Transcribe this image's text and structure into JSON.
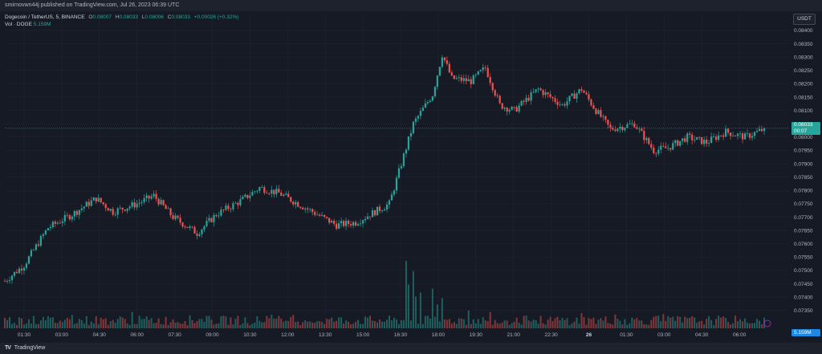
{
  "header": {
    "published_text": "smirnovwn44j published on TradingView.com, Jul 26, 2023 06:39 UTC"
  },
  "legend": {
    "symbol": "Dogecoin / TetherUS, 5, BINANCE",
    "open_label": "O",
    "open": "0.08007",
    "high_label": "H",
    "high": "0.08033",
    "low_label": "L",
    "low": "0.08006",
    "close_label": "C",
    "close": "0.08033",
    "change": "+0.00026 (+0.32%)",
    "vol_label": "Vol · DOGE",
    "vol_value": "5.159M"
  },
  "currency_button": "USDT",
  "price_tag": {
    "price": "0.08033",
    "countdown": "00:07"
  },
  "volume_tag": "5.159M",
  "footer": {
    "brand": "TradingView"
  },
  "colors": {
    "up": "#26a69a",
    "down": "#ef5350",
    "background": "#161a25",
    "grid": "#232632"
  },
  "chart_data": {
    "type": "candlestick",
    "y_ticks": [
      "0.08400",
      "0.08350",
      "0.08300",
      "0.08250",
      "0.08200",
      "0.08150",
      "0.08100",
      "0.08050",
      "0.08000",
      "0.07950",
      "0.07900",
      "0.07850",
      "0.07800",
      "0.07750",
      "0.07700",
      "0.07650",
      "0.07600",
      "0.07550",
      "0.07500",
      "0.07450",
      "0.07400",
      "0.07350"
    ],
    "x_ticks": [
      "01:30",
      "03:00",
      "04:30",
      "06:00",
      "07:30",
      "09:00",
      "10:30",
      "12:00",
      "13:30",
      "15:00",
      "16:30",
      "18:00",
      "19:30",
      "21:00",
      "22:30",
      "26",
      "01:30",
      "03:00",
      "04:30",
      "06:00"
    ],
    "ylim": [
      0.0731,
      0.0846
    ],
    "current_price": 0.08033,
    "price_anchors": [
      [
        0,
        0.0746
      ],
      [
        8,
        0.0752
      ],
      [
        18,
        0.0766
      ],
      [
        28,
        0.0771
      ],
      [
        38,
        0.0777
      ],
      [
        45,
        0.0772
      ],
      [
        55,
        0.0775
      ],
      [
        62,
        0.0778
      ],
      [
        70,
        0.077
      ],
      [
        80,
        0.0764
      ],
      [
        88,
        0.0771
      ],
      [
        98,
        0.0776
      ],
      [
        106,
        0.0781
      ],
      [
        114,
        0.0779
      ],
      [
        122,
        0.0775
      ],
      [
        130,
        0.0771
      ],
      [
        138,
        0.0767
      ],
      [
        146,
        0.0768
      ],
      [
        152,
        0.0771
      ],
      [
        160,
        0.0775
      ],
      [
        165,
        0.079
      ],
      [
        170,
        0.0805
      ],
      [
        178,
        0.0816
      ],
      [
        182,
        0.0831
      ],
      [
        186,
        0.0822
      ],
      [
        194,
        0.0821
      ],
      [
        200,
        0.0826
      ],
      [
        206,
        0.0812
      ],
      [
        212,
        0.081
      ],
      [
        222,
        0.0818
      ],
      [
        232,
        0.0812
      ],
      [
        240,
        0.0818
      ],
      [
        246,
        0.081
      ],
      [
        252,
        0.0803
      ],
      [
        262,
        0.0805
      ],
      [
        270,
        0.0795
      ],
      [
        276,
        0.0796
      ],
      [
        284,
        0.08
      ],
      [
        292,
        0.0798
      ],
      [
        300,
        0.0802
      ],
      [
        308,
        0.08
      ],
      [
        316,
        0.0803
      ]
    ],
    "volume_spikes": [
      [
        167,
        0.85
      ],
      [
        168,
        0.55
      ],
      [
        170,
        0.72
      ],
      [
        171,
        0.4
      ],
      [
        173,
        0.45
      ],
      [
        178,
        0.5
      ],
      [
        180,
        0.3
      ],
      [
        182,
        0.38
      ]
    ],
    "candle_count": 317
  }
}
